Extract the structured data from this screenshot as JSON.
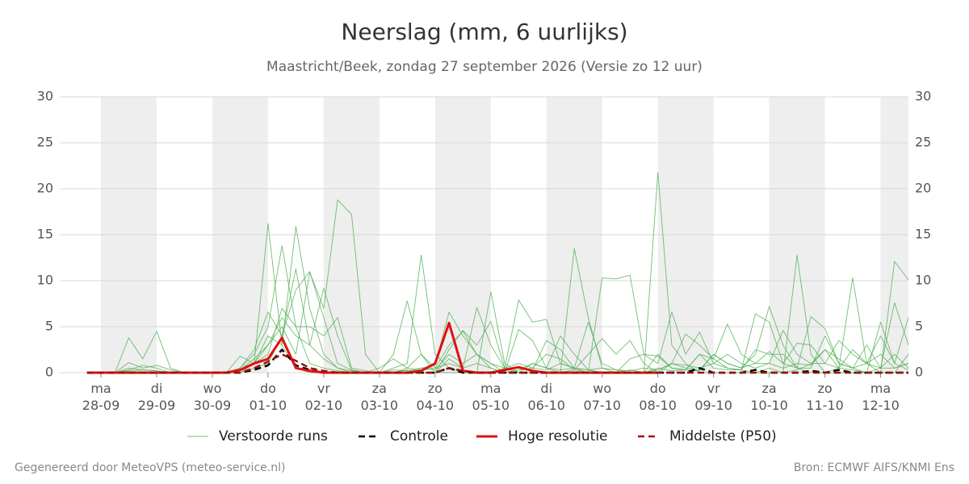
{
  "chart_data": {
    "type": "line",
    "title": "Neerslag (mm, 6 uurlijks)",
    "subtitle": "Maastricht/Beek, zondag 27 september 2026 (Versie zo 12 uur)",
    "footer_left": "Gegenereerd door MeteoVPS (meteo-service.nl)",
    "footer_right": "Bron: ECMWF AIFS/KNMI Ens",
    "x": [
      -0.25,
      0,
      0.25,
      0.5,
      0.75,
      1,
      1.25,
      1.5,
      1.75,
      2,
      2.25,
      2.5,
      2.75,
      3,
      3.25,
      3.5,
      3.75,
      4,
      4.25,
      4.5,
      4.75,
      5,
      5.25,
      5.5,
      5.75,
      6,
      6.25,
      6.5,
      6.75,
      7,
      7.25,
      7.5,
      7.75,
      8,
      8.25,
      8.5,
      8.75,
      9,
      9.25,
      9.5,
      9.75,
      10,
      10.25,
      10.5,
      10.75,
      11,
      11.25,
      11.5,
      11.75,
      12,
      12.25,
      12.5,
      12.75,
      13,
      13.25,
      13.5,
      13.75,
      14,
      14.25,
      14.5
    ],
    "xlim": [
      -0.74,
      14.5
    ],
    "xticks": [
      {
        "value": 0,
        "label": "ma 28-09"
      },
      {
        "value": 1,
        "label": "di 29-09"
      },
      {
        "value": 2,
        "label": "wo 30-09"
      },
      {
        "value": 3,
        "label": "do 01-10"
      },
      {
        "value": 4,
        "label": "vr 02-10"
      },
      {
        "value": 5,
        "label": "za 03-10"
      },
      {
        "value": 6,
        "label": "zo 04-10"
      },
      {
        "value": 7,
        "label": "ma 05-10"
      },
      {
        "value": 8,
        "label": "di 06-10"
      },
      {
        "value": 9,
        "label": "wo 07-10"
      },
      {
        "value": 10,
        "label": "do 08-10"
      },
      {
        "value": 11,
        "label": "vr 09-10"
      },
      {
        "value": 12,
        "label": "za 10-10"
      },
      {
        "value": 13,
        "label": "zo 11-10"
      },
      {
        "value": 14,
        "label": "ma 12-10"
      }
    ],
    "ylim": [
      0,
      30
    ],
    "yticks": [
      0,
      5,
      10,
      15,
      20,
      25,
      30
    ],
    "grid": true,
    "legend": "bottom",
    "series": [
      {
        "name": "Verstoorde runs",
        "color": "#4caf50",
        "style": "thin",
        "runs": [
          [
            0,
            0,
            0,
            3.8,
            1.5,
            4.5,
            0.5,
            0,
            0,
            0,
            0,
            0,
            1,
            16.2,
            3,
            0.5,
            0,
            0,
            0,
            0,
            0,
            0,
            2,
            7.8,
            2,
            0,
            0,
            0,
            0,
            8.8,
            1,
            0,
            0,
            0,
            0,
            13.5,
            6,
            0.5,
            0,
            0,
            0,
            21.8,
            3,
            1,
            0,
            0,
            0,
            0,
            0,
            0,
            0,
            12.8,
            2,
            0,
            0,
            0,
            0,
            0,
            0,
            2
          ],
          [
            0,
            0,
            0,
            1.1,
            0.5,
            0.8,
            0.3,
            0,
            0,
            0,
            0,
            0.5,
            2,
            5,
            13.8,
            5,
            1,
            0.5,
            0.2,
            0,
            0,
            0,
            0.5,
            1,
            12.8,
            2,
            0.5,
            0,
            0,
            0,
            0.5,
            7.9,
            5.5,
            5.8,
            1,
            0.5,
            0,
            10.3,
            10.2,
            10.6,
            2,
            1,
            6.6,
            2,
            4.4,
            1,
            0.5,
            0.3,
            6.4,
            5.5,
            1,
            0.5,
            0,
            0,
            0.5,
            10.3,
            1,
            0,
            12.1,
            10.1
          ],
          [
            0,
            0,
            0,
            0.3,
            0.8,
            0.5,
            0,
            0,
            0,
            0,
            0,
            1.8,
            1,
            4,
            3,
            15.9,
            7,
            2,
            0.5,
            0,
            0,
            0,
            0,
            0,
            0.5,
            0.8,
            6.6,
            4,
            2,
            1,
            0,
            4.7,
            3.5,
            0.5,
            0.3,
            0.5,
            5.5,
            1,
            0.3,
            0,
            0,
            2,
            0.5,
            0.3,
            0.2,
            2,
            1,
            0.5,
            2,
            7.2,
            3,
            0.5,
            6.1,
            4.8,
            1,
            0.5,
            0,
            5.5,
            1,
            0.3
          ],
          [
            0,
            0,
            0,
            0,
            0,
            0,
            0,
            0,
            0,
            0,
            0,
            0.3,
            1.5,
            3,
            5,
            2,
            10.9,
            7,
            18.8,
            17.2,
            2,
            0,
            0,
            0.5,
            0.3,
            0.5,
            3,
            4.5,
            2,
            0.5,
            0,
            0.3,
            1,
            0.5,
            0,
            0.3,
            2,
            3.7,
            2,
            3.5,
            1,
            0,
            1,
            4.2,
            3,
            1.5,
            5.3,
            2,
            1,
            1,
            4.6,
            2,
            1,
            1,
            3.5,
            2,
            1,
            4,
            1,
            6
          ],
          [
            0,
            0,
            0,
            0.5,
            0.3,
            0.2,
            0,
            0,
            0,
            0,
            0,
            0.5,
            2.5,
            6.6,
            4,
            11.3,
            3,
            9.2,
            4,
            0.3,
            0,
            0.5,
            1.5,
            0.5,
            2,
            0.5,
            1,
            0.5,
            7.1,
            3,
            0.5,
            0.5,
            0.3,
            3.5,
            2.5,
            0.5,
            0.3,
            0,
            0,
            1.5,
            2,
            1.8,
            0.5,
            0.3,
            2,
            1.5,
            0.5,
            0.3,
            2.5,
            2,
            2,
            0.5,
            0.5,
            4,
            1,
            0.5,
            3,
            0.5,
            7.6,
            3
          ],
          [
            0,
            0,
            0,
            0,
            0,
            0,
            0,
            0,
            0,
            0,
            0,
            0.2,
            1,
            2,
            7,
            5,
            5,
            4,
            6,
            0.5,
            0.2,
            0,
            0,
            0,
            0,
            0,
            2.5,
            4.6,
            3,
            5.6,
            0.5,
            0,
            1,
            0.5,
            4,
            2,
            0.3,
            0,
            0,
            0.3,
            0,
            0.3,
            1,
            0.5,
            0.3,
            2,
            1,
            0.5,
            1,
            2.3,
            1,
            3.2,
            3,
            1,
            0.5,
            2.5,
            1,
            0.5,
            2,
            0.5
          ],
          [
            0,
            0,
            0,
            0,
            0,
            0,
            0,
            0,
            0,
            0,
            0,
            0,
            0.5,
            1,
            4,
            9,
            11,
            6,
            1,
            0.3,
            0,
            0,
            0,
            0.3,
            0,
            0,
            1.5,
            0.5,
            1,
            0.5,
            0,
            0.3,
            0.5,
            2,
            1.5,
            0.3,
            0,
            0,
            0,
            0,
            0,
            0.5,
            0.2,
            0.3,
            2,
            0.5,
            0.3,
            0.3,
            0,
            0.5,
            0,
            0.3,
            1,
            2.5,
            0.5,
            0.3,
            0,
            0.5,
            0.5,
            1
          ],
          [
            0,
            0,
            0,
            0.2,
            0.3,
            0.2,
            0,
            0,
            0,
            0,
            0,
            0.3,
            1,
            3,
            6,
            4,
            3,
            1.5,
            0.5,
            0.2,
            0,
            0,
            0.3,
            0.2,
            0.5,
            0.3,
            2,
            1,
            2,
            1,
            0.5,
            1,
            0.5,
            0.3,
            1,
            0.5,
            0.3,
            0.5,
            0.3,
            0.2,
            0.5,
            0.3,
            1,
            0.8,
            0.5,
            1,
            2,
            1,
            0.5,
            1,
            0.5,
            1,
            0.8,
            2.5,
            1.5,
            0.5,
            1,
            2,
            0.5,
            1
          ]
        ]
      },
      {
        "name": "Controle",
        "color": "#000000",
        "style": "dashed",
        "values": [
          0,
          0,
          0,
          0,
          0,
          0,
          0,
          0,
          0,
          0,
          0,
          0,
          0.3,
          0.8,
          2.5,
          0.8,
          0.3,
          0,
          0,
          0,
          0,
          0,
          0,
          0,
          0,
          0,
          0.5,
          0,
          0,
          0,
          0,
          0,
          0,
          0,
          0,
          0,
          0,
          0,
          0,
          0,
          0,
          0,
          0,
          0,
          0.5,
          0,
          0,
          0,
          0.3,
          0,
          0,
          0,
          0.2,
          0,
          0.3,
          0,
          0,
          0,
          0,
          0
        ]
      },
      {
        "name": "Hoge resolutie",
        "color": "#e01010",
        "style": "thick",
        "values": [
          0,
          0,
          0,
          0,
          0,
          0,
          0,
          0,
          0,
          0,
          0,
          0.3,
          1,
          1.5,
          3.8,
          0.5,
          0.2,
          0,
          0,
          0,
          0,
          0,
          0,
          0,
          0.2,
          1,
          5.4,
          0.2,
          0,
          0,
          0.3,
          0.6,
          0.2,
          0,
          0,
          0,
          0,
          0,
          0,
          0,
          0,
          0,
          null,
          null,
          null,
          null,
          null,
          null,
          null,
          null,
          null,
          null,
          null,
          null,
          null,
          null,
          null,
          null,
          null,
          null
        ]
      },
      {
        "name": "Middelste (P50)",
        "color": "#a01010",
        "style": "dashed",
        "values": [
          0,
          0,
          0,
          0,
          0,
          0,
          0,
          0,
          0,
          0,
          0,
          0,
          0.5,
          1.2,
          2,
          1.3,
          0.5,
          0.2,
          0,
          0,
          0,
          0,
          0,
          0,
          0,
          0,
          0.5,
          0.2,
          0,
          0,
          0,
          0,
          0,
          0,
          0,
          0,
          0,
          0,
          0,
          0,
          0,
          0,
          0,
          0,
          0,
          0,
          0,
          0,
          0,
          0,
          0,
          0,
          0,
          0,
          0,
          0,
          0,
          0,
          0,
          0
        ]
      }
    ]
  }
}
